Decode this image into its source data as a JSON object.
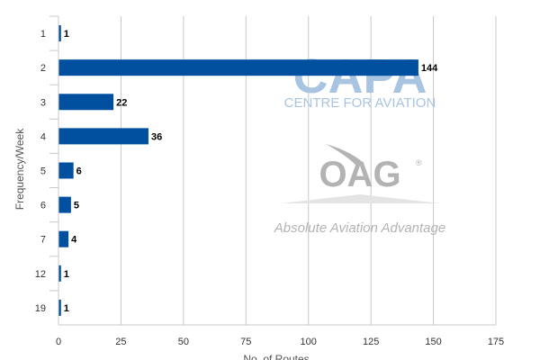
{
  "chart_data": {
    "type": "bar",
    "orientation": "horizontal",
    "categories": [
      "1",
      "2",
      "3",
      "4",
      "5",
      "6",
      "7",
      "12",
      "19"
    ],
    "values": [
      1,
      144,
      22,
      36,
      6,
      5,
      4,
      1,
      1
    ],
    "ylabel": "Frequency/Week",
    "xlabel": "No. of Routes",
    "xlim": [
      0,
      175
    ],
    "xticks": [
      0,
      25,
      50,
      75,
      100,
      125,
      150,
      175
    ],
    "grid": true,
    "legend": "none",
    "bar_color": "#0050a0",
    "grid_color": "#c8c8c8"
  },
  "watermarks": {
    "capa_logo": "CAPA",
    "capa_tagline": "CENTRE FOR AVIATION",
    "oag_logo": "OAG",
    "oag_registered": "®",
    "oag_tagline": "Absolute Aviation Advantage",
    "capa_color": "#a9c4e0",
    "oag_color": "#b3b3b3"
  }
}
